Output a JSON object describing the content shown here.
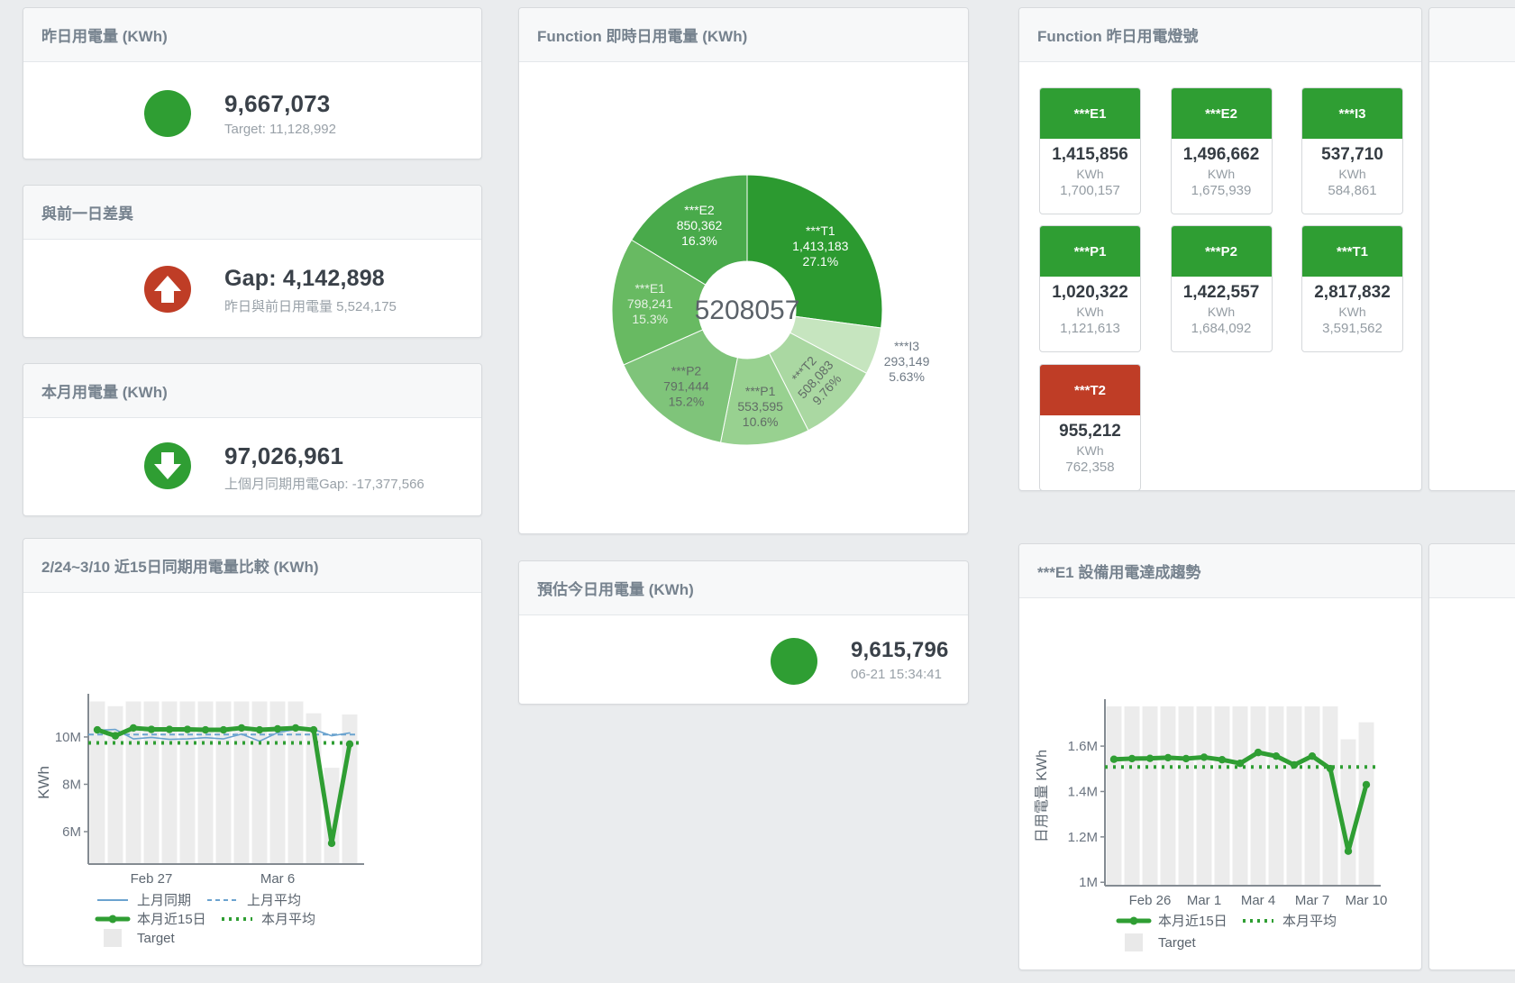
{
  "colors": {
    "green": "#2f9e33",
    "red": "#bf3d26",
    "bar": "#ececec",
    "blue": "#6ba3cf",
    "axis": "#848b92",
    "tick_text": "#5d6771",
    "legend_text": "#5a636d",
    "value_text": "#3a4149",
    "sub_text": "#99a1a8",
    "card_header_text": "#76828e"
  },
  "stat_cards": [
    {
      "id": "yesterday",
      "title": "昨日用電量 (KWh)",
      "icon": "circle",
      "icon_color": "#2f9e33",
      "value": "9,667,073",
      "subtitle": "Target: 11,128,992"
    },
    {
      "id": "gap",
      "title": "與前一日差異",
      "icon": "arrow-up",
      "icon_color": "#bf3d26",
      "value": "Gap: 4,142,898",
      "subtitle": "昨日與前日用電量 5,524,175"
    },
    {
      "id": "month",
      "title": "本月用電量 (KWh)",
      "icon": "arrow-down",
      "icon_color": "#2f9e33",
      "value": "97,026,961",
      "subtitle": "上個月同期用電Gap: -17,377,566"
    },
    {
      "id": "estimate",
      "title": "預估今日用電量 (KWh)",
      "icon": "circle",
      "icon_color": "#2f9e33",
      "value": "9,615,796",
      "subtitle": "06-21 15:34:41"
    }
  ],
  "lamp_panel": {
    "title": "Function 昨日用電燈號",
    "tiles": [
      {
        "label": "***E1",
        "value": "1,415,856",
        "unit": "KWh",
        "target": "1,700,157",
        "status": "green"
      },
      {
        "label": "***E2",
        "value": "1,496,662",
        "unit": "KWh",
        "target": "1,675,939",
        "status": "green"
      },
      {
        "label": "***I3",
        "value": "537,710",
        "unit": "KWh",
        "target": "584,861",
        "status": "green"
      },
      {
        "label": "***P1",
        "value": "1,020,322",
        "unit": "KWh",
        "target": "1,121,613",
        "status": "green"
      },
      {
        "label": "***P2",
        "value": "1,422,557",
        "unit": "KWh",
        "target": "1,684,092",
        "status": "green"
      },
      {
        "label": "***T1",
        "value": "2,817,832",
        "unit": "KWh",
        "target": "3,591,562",
        "status": "green"
      },
      {
        "label": "***T2",
        "value": "955,212",
        "unit": "KWh",
        "target": "762,358",
        "status": "red"
      }
    ]
  },
  "chart_data": [
    {
      "type": "pie",
      "title": "Function 即時日用電量 (KWh)",
      "center_label": "5208057",
      "legend_position": "none",
      "segments": [
        {
          "name": "***T1",
          "value": 1413183,
          "value_label": "1,413,183",
          "pct_label": "27.1%",
          "color": "#2c9a30",
          "label_color": "#ffffff",
          "placement": "inside"
        },
        {
          "name": "***I3",
          "value": 293149,
          "value_label": "293,149",
          "pct_label": "5.63%",
          "color": "#c6e5bf",
          "label_color": "#6f7a85",
          "placement": "outside"
        },
        {
          "name": "***T2",
          "value": 508083,
          "value_label": "508,083",
          "pct_label": "9.76%",
          "color": "#aad8a2",
          "label_color": "#616c66",
          "placement": "inside",
          "rotate": -48
        },
        {
          "name": "***P1",
          "value": 553595,
          "value_label": "553,595",
          "pct_label": "10.6%",
          "color": "#98d190",
          "label_color": "#616c66",
          "placement": "inside"
        },
        {
          "name": "***P2",
          "value": 791444,
          "value_label": "791,444",
          "pct_label": "15.2%",
          "color": "#7fc47a",
          "label_color": "#616c66",
          "placement": "inside"
        },
        {
          "name": "***E1",
          "value": 798241,
          "value_label": "798,241",
          "pct_label": "15.3%",
          "color": "#68ba62",
          "label_color": "#e6f2e4",
          "placement": "inside"
        },
        {
          "name": "***E2",
          "value": 850362,
          "value_label": "850,362",
          "pct_label": "16.3%",
          "color": "#49aa4b",
          "label_color": "#ffffff",
          "placement": "inside"
        }
      ]
    },
    {
      "type": "line",
      "title": "2/24~3/10 近15日同期用電量比較 (KWh)",
      "ylabel": "KWh",
      "categories": [
        "2/24",
        "2/25",
        "2/26",
        "2/27",
        "2/28",
        "3/1",
        "3/2",
        "3/3",
        "3/4",
        "3/5",
        "3/6",
        "3/7",
        "3/8",
        "3/9",
        "3/10"
      ],
      "ylim": [
        4630000,
        11520000
      ],
      "y_ticks": [
        {
          "label": "10M",
          "value": 10000000
        },
        {
          "label": "8M",
          "value": 8000000
        },
        {
          "label": "6M",
          "value": 6000000
        }
      ],
      "x_ticks": [
        {
          "label": "Feb 27",
          "index": 3
        },
        {
          "label": "Mar 6",
          "index": 10
        }
      ],
      "target": {
        "name": "Target",
        "values": [
          11500000,
          11300000,
          11500000,
          11500000,
          11500000,
          11500000,
          11500000,
          11500000,
          11500000,
          11500000,
          11500000,
          11500000,
          11000000,
          8700000,
          10950000
        ]
      },
      "series": [
        {
          "name": "上月同期",
          "style": "line",
          "color": "#6ba3cf",
          "width": 1.6,
          "values": [
            10280000,
            10320000,
            9920000,
            9980000,
            9900000,
            9920000,
            9970000,
            9920000,
            10120000,
            9820000,
            10180000,
            10320000,
            10320000,
            10050000,
            10170000
          ]
        },
        {
          "name": "上月平均",
          "style": "avg-dashed",
          "color": "#6ba3cf",
          "width": 2,
          "value": 10100000
        },
        {
          "name": "本月平均",
          "style": "avg-dotted",
          "color": "#2f9e33",
          "width": 4,
          "value": 9750000
        },
        {
          "name": "本月近15日",
          "style": "thick",
          "color": "#2f9e33",
          "width": 5,
          "values": [
            10300000,
            10050000,
            10380000,
            10320000,
            10320000,
            10320000,
            10300000,
            10300000,
            10380000,
            10300000,
            10340000,
            10380000,
            10300000,
            5510000,
            9700000
          ]
        }
      ],
      "legend": [
        [
          {
            "swatch": "line",
            "label": "上月同期",
            "color": "#6ba3cf"
          },
          {
            "swatch": "dashed",
            "label": "上月平均",
            "color": "#6ba3cf"
          }
        ],
        [
          {
            "swatch": "thick",
            "label": "本月近15日",
            "color": "#2f9e33"
          },
          {
            "swatch": "dotted",
            "label": "本月平均",
            "color": "#2f9e33"
          }
        ],
        [
          {
            "swatch": "square",
            "label": "Target",
            "color": "#e9e9e9"
          }
        ]
      ]
    },
    {
      "type": "line",
      "title": "***E1 設備用電達成趨勢",
      "ylabel": "日用電量 KWh",
      "categories": [
        "2/24",
        "2/25",
        "2/26",
        "2/27",
        "2/28",
        "3/1",
        "3/2",
        "3/3",
        "3/4",
        "3/5",
        "3/6",
        "3/7",
        "3/8",
        "3/9",
        "3/10"
      ],
      "ylim": [
        985000,
        1775000
      ],
      "y_ticks": [
        {
          "label": "1.6M",
          "value": 1600000
        },
        {
          "label": "1.4M",
          "value": 1400000
        },
        {
          "label": "1.2M",
          "value": 1200000
        },
        {
          "label": "1M",
          "value": 1000000
        }
      ],
      "x_ticks": [
        {
          "label": "Feb 26",
          "index": 2
        },
        {
          "label": "Mar 1",
          "index": 5
        },
        {
          "label": "Mar 4",
          "index": 8
        },
        {
          "label": "Mar 7",
          "index": 11
        },
        {
          "label": "Mar 10",
          "index": 14
        }
      ],
      "target": {
        "name": "Target",
        "values": [
          1775000,
          1775000,
          1775000,
          1775000,
          1775000,
          1775000,
          1775000,
          1775000,
          1775000,
          1775000,
          1775000,
          1775000,
          1775000,
          1630000,
          1705000
        ]
      },
      "series": [
        {
          "name": "本月平均",
          "style": "avg-dotted",
          "color": "#2f9e33",
          "width": 4,
          "value": 1508000
        },
        {
          "name": "本月近15日",
          "style": "thick",
          "color": "#2f9e33",
          "width": 5,
          "values": [
            1542000,
            1545000,
            1546000,
            1549000,
            1545000,
            1551000,
            1540000,
            1524000,
            1572000,
            1556000,
            1517000,
            1556000,
            1501000,
            1137000,
            1430000
          ]
        }
      ],
      "legend": [
        [
          {
            "swatch": "thick",
            "label": "本月近15日",
            "color": "#2f9e33"
          },
          {
            "swatch": "dotted",
            "label": "本月平均",
            "color": "#2f9e33"
          }
        ],
        [
          {
            "swatch": "square",
            "label": "Target",
            "color": "#e9e9e9"
          }
        ]
      ]
    }
  ]
}
